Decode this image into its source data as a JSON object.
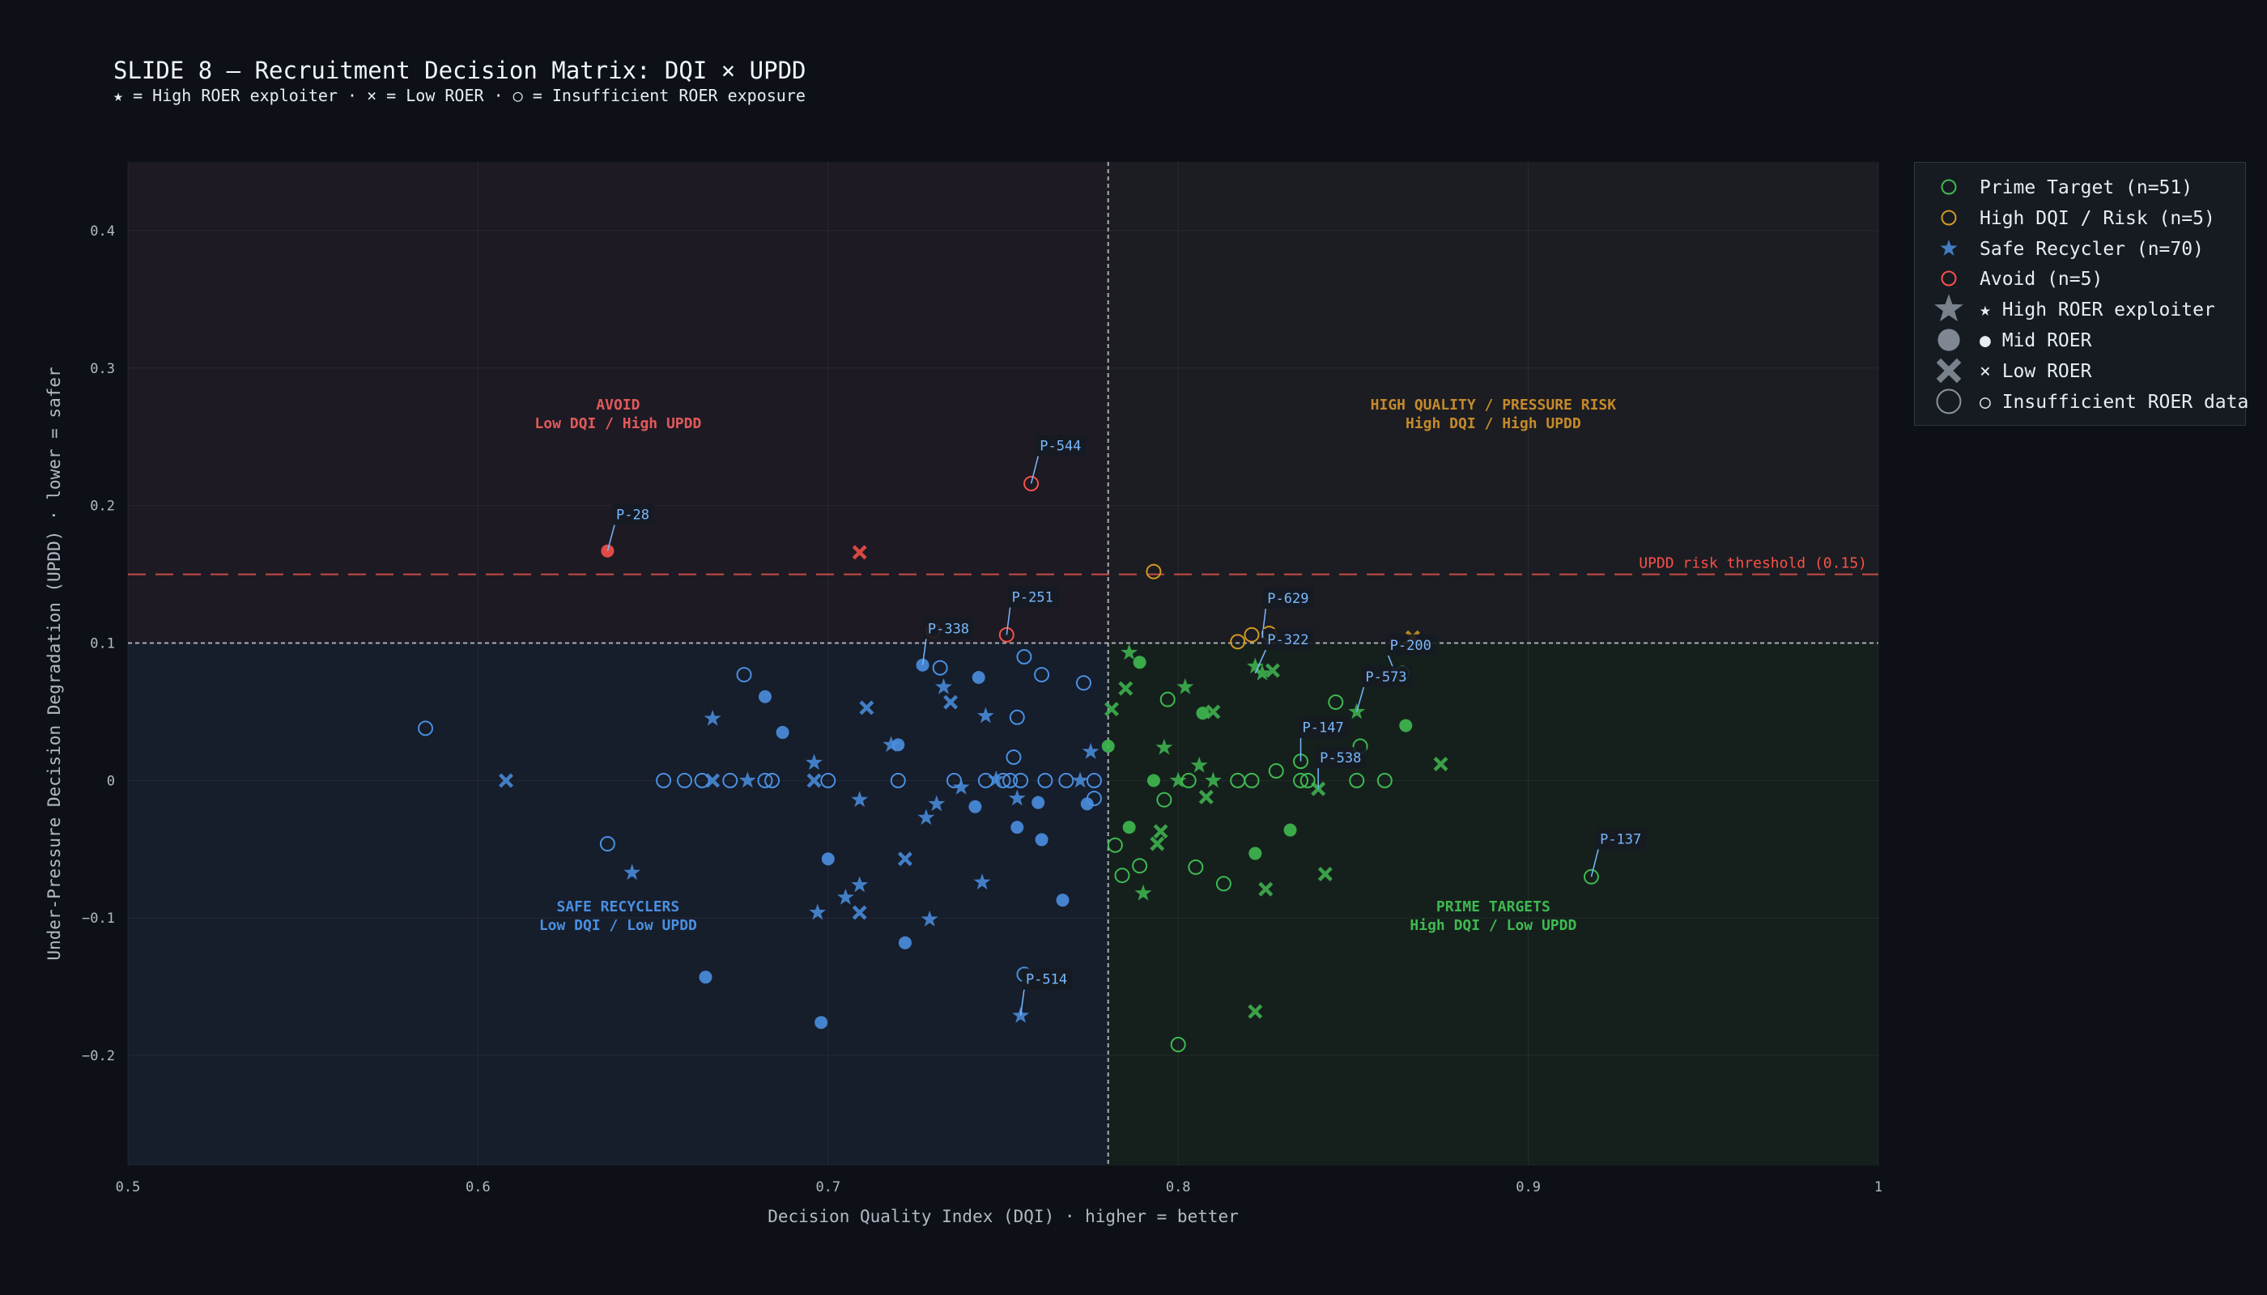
{
  "header": {
    "title": "SLIDE 8 — Recruitment Decision Matrix: DQI × UPDD",
    "subtitle": "★ = High ROER exploiter  ·  × = Low ROER  ·  ○ = Insufficient ROER exposure"
  },
  "legend": {
    "items": [
      {
        "label": "Prime Target  (n=51)",
        "marker": "circle-open",
        "color": "#3fb950"
      },
      {
        "label": "High DQI / Risk  (n=5)",
        "marker": "circle-open",
        "color": "#d29922"
      },
      {
        "label": "Safe Recycler  (n=70)",
        "marker": "star",
        "color": "#4a8fe0"
      },
      {
        "label": "Avoid  (n=5)",
        "marker": "circle-open",
        "color": "#f85149"
      },
      {
        "label": "★ High ROER exploiter",
        "marker": "star",
        "color": "#8b949e"
      },
      {
        "label": "● Mid ROER",
        "marker": "circle",
        "color": "#8b949e"
      },
      {
        "label": "× Low ROER",
        "marker": "x",
        "color": "#8b949e"
      },
      {
        "label": "○ Insufficient ROER data",
        "marker": "circle-open",
        "color": "#8b949e"
      }
    ]
  },
  "colors": {
    "Prime": "#3fb950",
    "Risk": "#d29922",
    "Safe": "#4a8fe0",
    "Avoid": "#f85149",
    "background": "#0d1117",
    "label_box": "#161b22",
    "label_text": "#79b8ff"
  },
  "chart_data": {
    "type": "scatter",
    "title": "SLIDE 8 — Recruitment Decision Matrix: DQI × UPDD",
    "xlabel": "Decision Quality Index (DQI)  ·  higher = better",
    "ylabel": "Under-Pressure Decision Degradation (UPDD)  ·  lower = safer",
    "xlim": [
      0.5,
      1.0
    ],
    "ylim": [
      -0.28,
      0.45
    ],
    "x_ticks": [
      0.5,
      0.6,
      0.7,
      0.8,
      0.9,
      1.0
    ],
    "x_tick_labels": [
      "0.5",
      "0.6",
      "0.7",
      "0.8",
      "0.9",
      "1"
    ],
    "y_ticks": [
      -0.2,
      -0.1,
      0,
      0.1,
      0.2,
      0.3,
      0.4
    ],
    "y_tick_labels": [
      "−0.2",
      "−0.1",
      "0",
      "0.1",
      "0.2",
      "0.3",
      "0.4"
    ],
    "grid": true,
    "legend_position": "outside-right",
    "dqi_threshold": 0.78,
    "updd_threshold": 0.1,
    "risk_threshold": {
      "value": 0.15,
      "label": "UPDD risk threshold (0.15)"
    },
    "quadrant_labels": [
      {
        "name": "avoid",
        "line1": "AVOID",
        "line2": "Low DQI / High UPDD",
        "x": 0.64,
        "y": 0.27,
        "color": "#e05a5a"
      },
      {
        "name": "risk",
        "line1": "HIGH QUALITY / PRESSURE RISK",
        "line2": "High DQI / High UPDD",
        "x": 0.89,
        "y": 0.27,
        "color": "#c48a2a"
      },
      {
        "name": "safe",
        "line1": "SAFE RECYCLERS",
        "line2": "Low DQI / Low UPDD",
        "x": 0.64,
        "y": -0.095,
        "color": "#4a8fe0"
      },
      {
        "name": "prime",
        "line1": "PRIME TARGETS",
        "line2": "High DQI / Low UPDD",
        "x": 0.89,
        "y": -0.095,
        "color": "#3fb950"
      }
    ],
    "series": [
      {
        "name": "Prime Target  (n=51)",
        "class": "Prime",
        "points": [
          {
            "x": 0.786,
            "y": 0.093,
            "m": "star"
          },
          {
            "x": 0.789,
            "y": 0.086,
            "m": "circle"
          },
          {
            "x": 0.785,
            "y": 0.067,
            "m": "x"
          },
          {
            "x": 0.781,
            "y": 0.052,
            "m": "x"
          },
          {
            "x": 0.78,
            "y": 0.025,
            "m": "circle"
          },
          {
            "x": 0.797,
            "y": 0.059,
            "m": "open"
          },
          {
            "x": 0.802,
            "y": 0.068,
            "m": "star"
          },
          {
            "x": 0.807,
            "y": 0.049,
            "m": "circle"
          },
          {
            "x": 0.81,
            "y": 0.05,
            "m": "x"
          },
          {
            "x": 0.796,
            "y": 0.024,
            "m": "star"
          },
          {
            "x": 0.806,
            "y": 0.011,
            "m": "star"
          },
          {
            "x": 0.793,
            "y": 0.0,
            "m": "circle"
          },
          {
            "x": 0.796,
            "y": -0.014,
            "m": "open"
          },
          {
            "x": 0.803,
            "y": 0.0,
            "m": "open"
          },
          {
            "x": 0.808,
            "y": -0.012,
            "m": "x"
          },
          {
            "x": 0.81,
            "y": 0.0,
            "m": "star"
          },
          {
            "x": 0.822,
            "y": 0.083,
            "m": "star"
          },
          {
            "x": 0.824,
            "y": 0.078,
            "m": "star"
          },
          {
            "x": 0.827,
            "y": 0.08,
            "m": "x"
          },
          {
            "x": 0.821,
            "y": 0.0,
            "m": "open"
          },
          {
            "x": 0.828,
            "y": 0.007,
            "m": "open"
          },
          {
            "x": 0.835,
            "y": 0.0,
            "m": "open"
          },
          {
            "x": 0.837,
            "y": 0.0,
            "m": "open"
          },
          {
            "x": 0.84,
            "y": -0.006,
            "m": "x"
          },
          {
            "x": 0.845,
            "y": 0.057,
            "m": "open"
          },
          {
            "x": 0.851,
            "y": 0.05,
            "m": "star"
          },
          {
            "x": 0.852,
            "y": 0.025,
            "m": "open"
          },
          {
            "x": 0.851,
            "y": 0.0,
            "m": "open"
          },
          {
            "x": 0.859,
            "y": 0.0,
            "m": "open"
          },
          {
            "x": 0.864,
            "y": 0.078,
            "m": "open"
          },
          {
            "x": 0.865,
            "y": 0.04,
            "m": "circle"
          },
          {
            "x": 0.875,
            "y": 0.012,
            "m": "x"
          },
          {
            "x": 0.782,
            "y": -0.047,
            "m": "open"
          },
          {
            "x": 0.786,
            "y": -0.034,
            "m": "circle"
          },
          {
            "x": 0.784,
            "y": -0.069,
            "m": "open"
          },
          {
            "x": 0.789,
            "y": -0.062,
            "m": "open"
          },
          {
            "x": 0.795,
            "y": -0.037,
            "m": "x"
          },
          {
            "x": 0.794,
            "y": -0.046,
            "m": "x"
          },
          {
            "x": 0.79,
            "y": -0.082,
            "m": "star"
          },
          {
            "x": 0.805,
            "y": -0.063,
            "m": "open"
          },
          {
            "x": 0.813,
            "y": -0.075,
            "m": "open"
          },
          {
            "x": 0.822,
            "y": -0.053,
            "m": "circle"
          },
          {
            "x": 0.825,
            "y": -0.079,
            "m": "x"
          },
          {
            "x": 0.832,
            "y": -0.036,
            "m": "circle"
          },
          {
            "x": 0.842,
            "y": -0.068,
            "m": "x"
          },
          {
            "x": 0.822,
            "y": -0.168,
            "m": "x"
          },
          {
            "x": 0.8,
            "y": -0.192,
            "m": "open"
          },
          {
            "x": 0.918,
            "y": -0.07,
            "m": "open"
          },
          {
            "x": 0.835,
            "y": 0.014,
            "m": "open"
          },
          {
            "x": 0.817,
            "y": 0.0,
            "m": "open"
          },
          {
            "x": 0.8,
            "y": 0.0,
            "m": "star"
          }
        ]
      },
      {
        "name": "High DQI / Risk  (n=5)",
        "class": "Risk",
        "points": [
          {
            "x": 0.793,
            "y": 0.152,
            "m": "open"
          },
          {
            "x": 0.817,
            "y": 0.101,
            "m": "open"
          },
          {
            "x": 0.821,
            "y": 0.106,
            "m": "open"
          },
          {
            "x": 0.826,
            "y": 0.107,
            "m": "open"
          },
          {
            "x": 0.867,
            "y": 0.104,
            "m": "x"
          }
        ]
      },
      {
        "name": "Safe Recycler  (n=70)",
        "class": "Safe",
        "points": [
          {
            "x": 0.585,
            "y": 0.038,
            "m": "open"
          },
          {
            "x": 0.608,
            "y": 0.0,
            "m": "x"
          },
          {
            "x": 0.637,
            "y": -0.046,
            "m": "open"
          },
          {
            "x": 0.644,
            "y": -0.067,
            "m": "star"
          },
          {
            "x": 0.665,
            "y": -0.143,
            "m": "circle"
          },
          {
            "x": 0.667,
            "y": 0.045,
            "m": "star"
          },
          {
            "x": 0.676,
            "y": 0.077,
            "m": "open"
          },
          {
            "x": 0.682,
            "y": 0.061,
            "m": "circle"
          },
          {
            "x": 0.687,
            "y": 0.035,
            "m": "circle"
          },
          {
            "x": 0.653,
            "y": 0.0,
            "m": "open"
          },
          {
            "x": 0.659,
            "y": 0.0,
            "m": "open"
          },
          {
            "x": 0.664,
            "y": 0.0,
            "m": "open"
          },
          {
            "x": 0.667,
            "y": 0.0,
            "m": "x"
          },
          {
            "x": 0.672,
            "y": 0.0,
            "m": "open"
          },
          {
            "x": 0.677,
            "y": 0.0,
            "m": "star"
          },
          {
            "x": 0.682,
            "y": 0.0,
            "m": "open"
          },
          {
            "x": 0.684,
            "y": 0.0,
            "m": "open"
          },
          {
            "x": 0.696,
            "y": 0.0,
            "m": "x"
          },
          {
            "x": 0.7,
            "y": 0.0,
            "m": "open"
          },
          {
            "x": 0.696,
            "y": 0.013,
            "m": "star"
          },
          {
            "x": 0.698,
            "y": -0.176,
            "m": "circle"
          },
          {
            "x": 0.7,
            "y": -0.057,
            "m": "circle"
          },
          {
            "x": 0.705,
            "y": -0.085,
            "m": "star"
          },
          {
            "x": 0.709,
            "y": -0.076,
            "m": "star"
          },
          {
            "x": 0.709,
            "y": -0.096,
            "m": "x"
          },
          {
            "x": 0.697,
            "y": -0.096,
            "m": "star"
          },
          {
            "x": 0.709,
            "y": -0.014,
            "m": "star"
          },
          {
            "x": 0.711,
            "y": 0.053,
            "m": "x"
          },
          {
            "x": 0.72,
            "y": 0.026,
            "m": "circle"
          },
          {
            "x": 0.72,
            "y": 0.0,
            "m": "open"
          },
          {
            "x": 0.722,
            "y": -0.118,
            "m": "circle"
          },
          {
            "x": 0.722,
            "y": -0.057,
            "m": "x"
          },
          {
            "x": 0.727,
            "y": 0.084,
            "m": "circle"
          },
          {
            "x": 0.732,
            "y": 0.082,
            "m": "open"
          },
          {
            "x": 0.733,
            "y": 0.068,
            "m": "star"
          },
          {
            "x": 0.735,
            "y": 0.057,
            "m": "x"
          },
          {
            "x": 0.728,
            "y": -0.027,
            "m": "star"
          },
          {
            "x": 0.731,
            "y": -0.017,
            "m": "star"
          },
          {
            "x": 0.729,
            "y": -0.101,
            "m": "star"
          },
          {
            "x": 0.738,
            "y": -0.005,
            "m": "star"
          },
          {
            "x": 0.742,
            "y": -0.019,
            "m": "circle"
          },
          {
            "x": 0.743,
            "y": 0.075,
            "m": "circle"
          },
          {
            "x": 0.745,
            "y": 0.047,
            "m": "star"
          },
          {
            "x": 0.744,
            "y": -0.074,
            "m": "star"
          },
          {
            "x": 0.748,
            "y": 0.001,
            "m": "star"
          },
          {
            "x": 0.752,
            "y": 0.0,
            "m": "open"
          },
          {
            "x": 0.753,
            "y": 0.017,
            "m": "open"
          },
          {
            "x": 0.754,
            "y": 0.046,
            "m": "open"
          },
          {
            "x": 0.756,
            "y": 0.09,
            "m": "open"
          },
          {
            "x": 0.754,
            "y": -0.013,
            "m": "star"
          },
          {
            "x": 0.755,
            "y": 0.0,
            "m": "open"
          },
          {
            "x": 0.754,
            "y": -0.034,
            "m": "circle"
          },
          {
            "x": 0.76,
            "y": -0.016,
            "m": "circle"
          },
          {
            "x": 0.761,
            "y": 0.077,
            "m": "open"
          },
          {
            "x": 0.762,
            "y": 0.0,
            "m": "open"
          },
          {
            "x": 0.761,
            "y": -0.043,
            "m": "circle"
          },
          {
            "x": 0.767,
            "y": -0.087,
            "m": "circle"
          },
          {
            "x": 0.768,
            "y": 0.0,
            "m": "open"
          },
          {
            "x": 0.772,
            "y": 0.0,
            "m": "star"
          },
          {
            "x": 0.773,
            "y": 0.071,
            "m": "open"
          },
          {
            "x": 0.775,
            "y": 0.021,
            "m": "star"
          },
          {
            "x": 0.776,
            "y": 0.0,
            "m": "open"
          },
          {
            "x": 0.776,
            "y": -0.013,
            "m": "open"
          },
          {
            "x": 0.774,
            "y": -0.017,
            "m": "circle"
          },
          {
            "x": 0.756,
            "y": -0.141,
            "m": "open"
          },
          {
            "x": 0.755,
            "y": -0.171,
            "m": "star"
          },
          {
            "x": 0.75,
            "y": 0.0,
            "m": "open"
          },
          {
            "x": 0.718,
            "y": 0.026,
            "m": "star"
          },
          {
            "x": 0.745,
            "y": 0.0,
            "m": "open"
          },
          {
            "x": 0.736,
            "y": 0.0,
            "m": "open"
          }
        ]
      },
      {
        "name": "Avoid  (n=5)",
        "class": "Avoid",
        "points": [
          {
            "x": 0.637,
            "y": 0.167,
            "m": "circle"
          },
          {
            "x": 0.709,
            "y": 0.166,
            "m": "x"
          },
          {
            "x": 0.758,
            "y": 0.216,
            "m": "open"
          },
          {
            "x": 0.751,
            "y": 0.106,
            "m": "open"
          },
          {
            "x": 0.73,
            "y": 0.109,
            "m": "open"
          }
        ]
      }
    ],
    "annotations": [
      {
        "label": "P-544",
        "x": 0.758,
        "y": 0.216,
        "tx": 0.76,
        "ty": 0.236
      },
      {
        "label": "P-28",
        "x": 0.637,
        "y": 0.167,
        "tx": 0.639,
        "ty": 0.186
      },
      {
        "label": "P-251",
        "x": 0.751,
        "y": 0.106,
        "tx": 0.752,
        "ty": 0.126
      },
      {
        "label": "P-338",
        "x": 0.727,
        "y": 0.084,
        "tx": 0.728,
        "ty": 0.103
      },
      {
        "label": "P-629",
        "x": 0.824,
        "y": 0.104,
        "tx": 0.825,
        "ty": 0.125
      },
      {
        "label": "P-322",
        "x": 0.822,
        "y": 0.078,
        "tx": 0.825,
        "ty": 0.095
      },
      {
        "label": "P-200",
        "x": 0.862,
        "y": 0.078,
        "tx": 0.86,
        "ty": 0.091
      },
      {
        "label": "P-573",
        "x": 0.851,
        "y": 0.05,
        "tx": 0.853,
        "ty": 0.068
      },
      {
        "label": "P-147",
        "x": 0.835,
        "y": 0.014,
        "tx": 0.835,
        "ty": 0.031
      },
      {
        "label": "P-538",
        "x": 0.84,
        "y": -0.006,
        "tx": 0.84,
        "ty": 0.009
      },
      {
        "label": "P-137",
        "x": 0.918,
        "y": -0.07,
        "tx": 0.92,
        "ty": -0.05
      },
      {
        "label": "P-514",
        "x": 0.755,
        "y": -0.171,
        "tx": 0.756,
        "ty": -0.152
      }
    ]
  }
}
